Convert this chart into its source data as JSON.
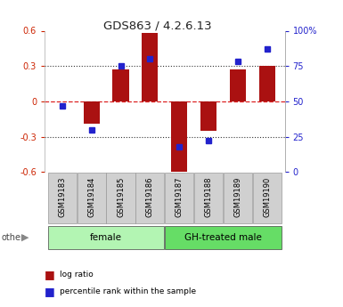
{
  "title": "GDS863 / 4.2.6.13",
  "samples": [
    "GSM19183",
    "GSM19184",
    "GSM19185",
    "GSM19186",
    "GSM19187",
    "GSM19188",
    "GSM19189",
    "GSM19190"
  ],
  "log_ratios": [
    0.0,
    -0.19,
    0.27,
    0.58,
    -0.62,
    -0.25,
    0.27,
    0.3
  ],
  "percentile_ranks": [
    47,
    30,
    75,
    80,
    18,
    22,
    78,
    87
  ],
  "groups": [
    {
      "label": "female",
      "start": 0,
      "end": 4,
      "color": "#b3f5b3"
    },
    {
      "label": "GH-treated male",
      "start": 4,
      "end": 8,
      "color": "#66dd66"
    }
  ],
  "ylim_left": [
    -0.6,
    0.6
  ],
  "ylim_right": [
    0,
    100
  ],
  "yticks_left": [
    -0.6,
    -0.3,
    0.0,
    0.3,
    0.6
  ],
  "yticks_right": [
    0,
    25,
    50,
    75,
    100
  ],
  "bar_color": "#aa1111",
  "dot_color": "#2222cc",
  "zero_line_color": "#dd2222",
  "dotted_color": "#333333",
  "bg_color": "#ffffff",
  "plot_bg": "#ffffff",
  "legend_red_label": "log ratio",
  "legend_blue_label": "percentile rank within the sample",
  "other_label": "other",
  "left_tick_color": "#cc2200",
  "right_tick_color": "#2222cc",
  "bar_width": 0.55
}
